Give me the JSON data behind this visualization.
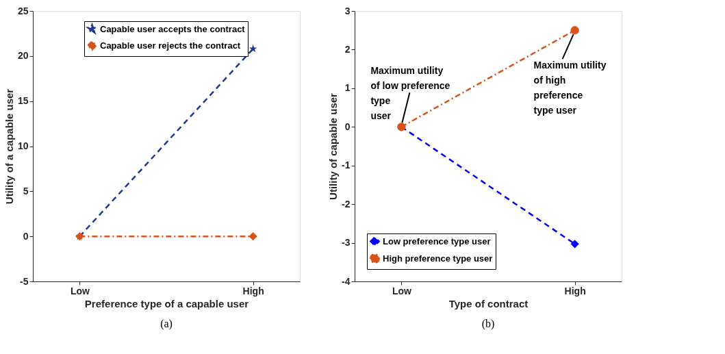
{
  "chart_data": [
    {
      "type": "line",
      "xlabel": "Preference type of a capable user",
      "ylabel": "Utility of a capable user",
      "categories": [
        "Low",
        "High"
      ],
      "ylim": [
        -5,
        25
      ],
      "yticks": [
        -5,
        0,
        5,
        10,
        15,
        20,
        25
      ],
      "grid": false,
      "legend": "top",
      "series": [
        {
          "name": "Capable user accepts the contract",
          "color": "#1f3790",
          "values": [
            0,
            20.8
          ],
          "marker": "star",
          "line_style": "dashed"
        },
        {
          "name": "Capable user rejects the contract",
          "color": "#d95319",
          "values": [
            0,
            0
          ],
          "marker": "diamond",
          "line_style": "dashdot"
        }
      ],
      "annotations": [
        "(a)"
      ]
    },
    {
      "type": "line",
      "xlabel": "Type of contract",
      "ylabel": "Utility of capable user",
      "categories": [
        "Low",
        "High"
      ],
      "ylim": [
        -4,
        3
      ],
      "yticks": [
        -4,
        -3,
        -2,
        -1,
        0,
        1,
        2,
        3
      ],
      "grid": false,
      "legend": "bottom left",
      "series": [
        {
          "name": "Low preference type user",
          "color": "#0000ff",
          "values": [
            0,
            -3.03
          ],
          "marker": "diamond",
          "line_style": "dashed"
        },
        {
          "name": "High preference type user",
          "color": "#d95319",
          "values": [
            0,
            2.5
          ],
          "marker": "circle",
          "line_style": "dashdot"
        }
      ],
      "annotations": [
        {
          "text": "Maximum utility\nof low preference\ntype\nuser",
          "x": "Low",
          "y": 0
        },
        {
          "text": "Maximum utility\nof high\npreference\ntype user",
          "x": "High",
          "y": 2.5
        },
        "(b)"
      ]
    }
  ]
}
